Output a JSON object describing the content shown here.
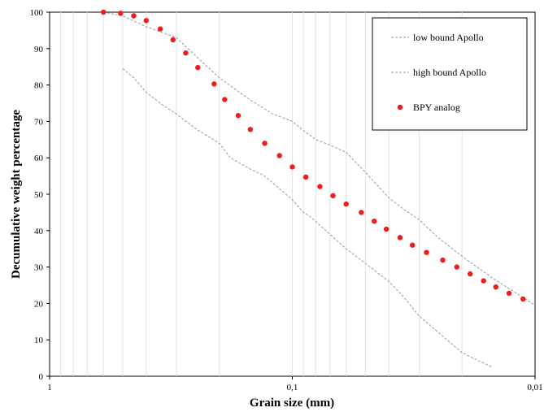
{
  "chart_data": {
    "type": "scatter",
    "xscale": "log",
    "xaxis_reversed": true,
    "xlim": [
      1,
      0.01
    ],
    "ylim": [
      0,
      100
    ],
    "xlabel": "Grain size (mm)",
    "ylabel": "Decumulative weight percentage",
    "x_ticks": [
      {
        "value": 1,
        "label": "1"
      },
      {
        "value": 0.1,
        "label": "0,1"
      },
      {
        "value": 0.01,
        "label": "0,01"
      }
    ],
    "y_ticks": [
      0,
      10,
      20,
      30,
      40,
      50,
      60,
      70,
      80,
      90,
      100
    ],
    "vertical_grid": true,
    "legend_position": "top-right",
    "series": [
      {
        "name": "low bound Apollo",
        "style": "dashed-line",
        "color": "#999999",
        "x": [
          0.5,
          0.45,
          0.4,
          0.35,
          0.3,
          0.25,
          0.2,
          0.18,
          0.15,
          0.13,
          0.12,
          0.1,
          0.09,
          0.085,
          0.08,
          0.07,
          0.06,
          0.05,
          0.04,
          0.035,
          0.03,
          0.025,
          0.02,
          0.018,
          0.015
        ],
        "y": [
          84.5,
          82,
          78,
          75,
          72,
          68,
          64,
          60,
          57,
          55,
          53,
          48.5,
          45,
          44,
          42.5,
          39,
          35,
          31,
          26,
          22,
          16.5,
          12,
          6.5,
          5,
          2.5
        ]
      },
      {
        "name": "high bound Apollo",
        "style": "dashed-line",
        "color": "#999999",
        "x": [
          0.6,
          0.5,
          0.4,
          0.3,
          0.25,
          0.2,
          0.15,
          0.12,
          0.1,
          0.09,
          0.08,
          0.07,
          0.06,
          0.05,
          0.04,
          0.035,
          0.03,
          0.025,
          0.02,
          0.015,
          0.01
        ],
        "y": [
          100,
          99,
          96,
          93,
          88,
          82,
          76,
          72,
          70,
          67.5,
          65,
          63.5,
          61.5,
          56,
          49,
          46,
          43,
          38,
          33,
          27,
          19.5
        ]
      },
      {
        "name": "BPY analog",
        "style": "markers",
        "color": "#ee1c1c",
        "x": [
          0.6,
          0.51,
          0.45,
          0.4,
          0.35,
          0.31,
          0.275,
          0.245,
          0.21,
          0.19,
          0.167,
          0.149,
          0.13,
          0.113,
          0.1,
          0.088,
          0.077,
          0.068,
          0.06,
          0.052,
          0.046,
          0.041,
          0.036,
          0.032,
          0.028,
          0.024,
          0.021,
          0.0185,
          0.0163,
          0.0145,
          0.0128,
          0.0112
        ],
        "y": [
          100,
          99.7,
          99,
          97.7,
          95.4,
          92.4,
          88.8,
          84.8,
          80.3,
          76,
          71.6,
          67.8,
          64,
          60.6,
          57.5,
          54.7,
          52.1,
          49.6,
          47.3,
          45,
          42.6,
          40.4,
          38.1,
          36,
          34,
          31.9,
          30,
          28.1,
          26.2,
          24.5,
          22.8,
          21.2
        ]
      }
    ]
  }
}
